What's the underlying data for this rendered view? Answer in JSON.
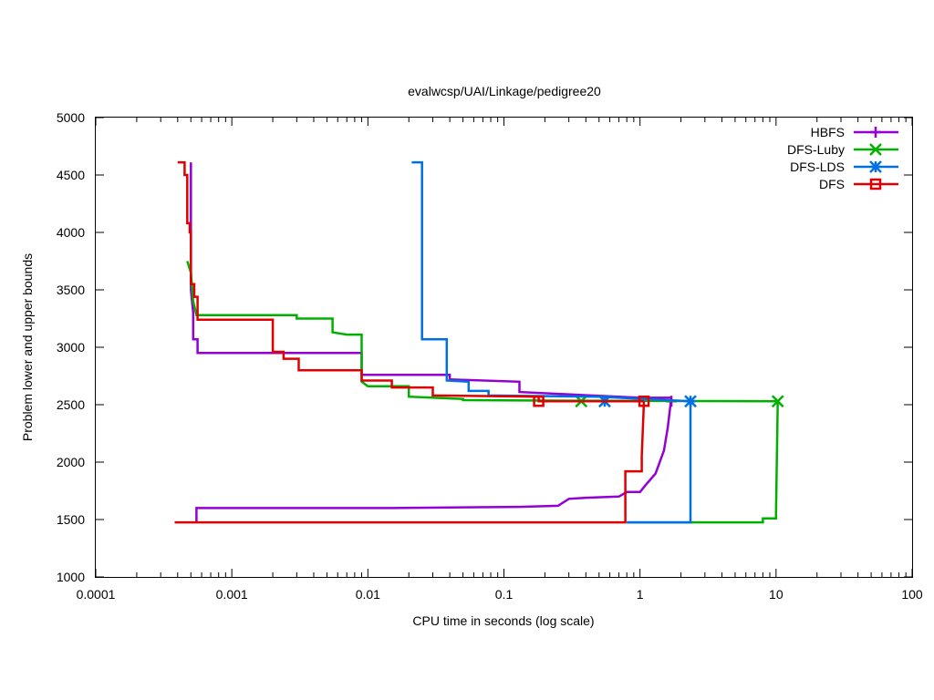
{
  "chart_data": {
    "type": "line",
    "title": "evalwcsp/UAI/Linkage/pedigree20",
    "xlabel": "CPU time in seconds (log scale)",
    "ylabel": "Problem lower and upper bounds",
    "xscale": "log",
    "xlim": [
      0.0001,
      100
    ],
    "ylim": [
      1000,
      5000
    ],
    "x_ticks": [
      0.0001,
      0.001,
      0.01,
      0.1,
      1,
      10,
      100
    ],
    "x_tick_labels": [
      "0.0001",
      "0.001",
      "0.01",
      "0.1",
      "1",
      "10",
      "100"
    ],
    "y_ticks": [
      1000,
      1500,
      2000,
      2500,
      3000,
      3500,
      4000,
      4500,
      5000
    ],
    "y_tick_labels": [
      "1000",
      "1500",
      "2000",
      "2500",
      "3000",
      "3500",
      "4000",
      "4500",
      "5000"
    ],
    "grid": false,
    "legend_position": "top-right",
    "series": [
      {
        "name": "HBFS",
        "color": "#9400d3",
        "marker": "plus",
        "upper": [
          [
            0.0005,
            4610
          ],
          [
            0.0005,
            3500
          ],
          [
            0.00052,
            3300
          ],
          [
            0.00052,
            3070
          ],
          [
            0.00056,
            3070
          ],
          [
            0.00056,
            2950
          ],
          [
            0.009,
            2950
          ],
          [
            0.009,
            2760
          ],
          [
            0.04,
            2760
          ],
          [
            0.04,
            2720
          ],
          [
            0.13,
            2700
          ],
          [
            0.13,
            2610
          ],
          [
            1.0,
            2560
          ],
          [
            1.7,
            2560
          ]
        ],
        "lower": [
          [
            0.00055,
            1470
          ],
          [
            0.00055,
            1600
          ],
          [
            0.015,
            1600
          ],
          [
            0.13,
            1610
          ],
          [
            0.25,
            1620
          ],
          [
            0.3,
            1680
          ],
          [
            0.4,
            1690
          ],
          [
            0.7,
            1700
          ],
          [
            0.8,
            1740
          ],
          [
            1.0,
            1740
          ],
          [
            1.1,
            1800
          ],
          [
            1.3,
            1900
          ],
          [
            1.5,
            2100
          ],
          [
            1.6,
            2300
          ],
          [
            1.7,
            2560
          ]
        ],
        "end_markers": [
          [
            1.7,
            2530
          ]
        ]
      },
      {
        "name": "DFS-Luby",
        "color": "#00b000",
        "marker": "cross",
        "upper": [
          [
            0.00047,
            3750
          ],
          [
            0.0005,
            3650
          ],
          [
            0.00052,
            3400
          ],
          [
            0.00055,
            3280
          ],
          [
            0.003,
            3280
          ],
          [
            0.003,
            3250
          ],
          [
            0.0055,
            3250
          ],
          [
            0.0055,
            3130
          ],
          [
            0.007,
            3110
          ],
          [
            0.009,
            3110
          ],
          [
            0.009,
            2700
          ],
          [
            0.01,
            2660
          ],
          [
            0.02,
            2660
          ],
          [
            0.02,
            2570
          ],
          [
            0.05,
            2550
          ],
          [
            0.05,
            2540
          ],
          [
            0.3,
            2535
          ],
          [
            10.3,
            2530
          ]
        ],
        "lower": [
          [
            0.8,
            1475
          ],
          [
            8.0,
            1475
          ],
          [
            8.0,
            1510
          ],
          [
            10.0,
            1510
          ],
          [
            10.0,
            1560
          ],
          [
            10.3,
            2530
          ]
        ],
        "end_markers": [
          [
            0.37,
            2530
          ],
          [
            10.3,
            2530
          ]
        ]
      },
      {
        "name": "DFS-LDS",
        "color": "#0070e0",
        "marker": "star",
        "upper": [
          [
            0.021,
            4610
          ],
          [
            0.025,
            4610
          ],
          [
            0.025,
            3070
          ],
          [
            0.038,
            3070
          ],
          [
            0.038,
            2710
          ],
          [
            0.055,
            2700
          ],
          [
            0.055,
            2620
          ],
          [
            0.077,
            2620
          ],
          [
            0.077,
            2580
          ],
          [
            0.5,
            2570
          ],
          [
            2.35,
            2530
          ]
        ],
        "lower": [
          [
            0.8,
            1475
          ],
          [
            2.35,
            1475
          ],
          [
            2.35,
            2530
          ]
        ],
        "end_markers": [
          [
            0.55,
            2530
          ],
          [
            2.35,
            2530
          ]
        ]
      },
      {
        "name": "DFS",
        "color": "#e00000",
        "marker": "square",
        "upper": [
          [
            0.0004,
            4610
          ],
          [
            0.00045,
            4610
          ],
          [
            0.00045,
            4500
          ],
          [
            0.00047,
            4500
          ],
          [
            0.00047,
            4080
          ],
          [
            0.00049,
            4080
          ],
          [
            0.00049,
            4000
          ],
          [
            0.0005,
            4000
          ],
          [
            0.0005,
            3550
          ],
          [
            0.00053,
            3550
          ],
          [
            0.00053,
            3440
          ],
          [
            0.00056,
            3440
          ],
          [
            0.00056,
            3240
          ],
          [
            0.002,
            3240
          ],
          [
            0.002,
            2960
          ],
          [
            0.0024,
            2960
          ],
          [
            0.0024,
            2900
          ],
          [
            0.0031,
            2900
          ],
          [
            0.0031,
            2800
          ],
          [
            0.009,
            2800
          ],
          [
            0.009,
            2710
          ],
          [
            0.015,
            2710
          ],
          [
            0.015,
            2650
          ],
          [
            0.03,
            2650
          ],
          [
            0.03,
            2580
          ],
          [
            0.18,
            2570
          ],
          [
            0.18,
            2530
          ],
          [
            1.07,
            2530
          ]
        ],
        "lower": [
          [
            0.00038,
            1475
          ],
          [
            0.78,
            1475
          ],
          [
            0.78,
            1920
          ],
          [
            1.03,
            1920
          ],
          [
            1.03,
            2050
          ],
          [
            1.07,
            2530
          ]
        ],
        "end_markers": [
          [
            0.18,
            2530
          ],
          [
            1.07,
            2530
          ]
        ]
      }
    ]
  }
}
